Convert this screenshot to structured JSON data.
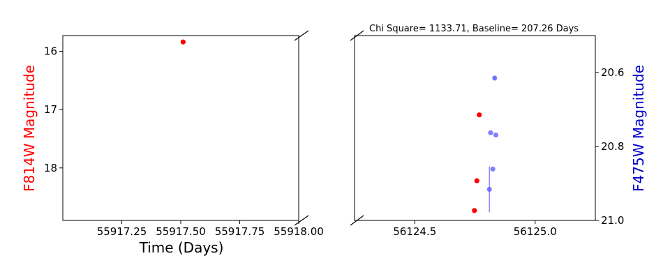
{
  "chart_data": {
    "type": "scatter",
    "title": "Chi Square= 1133.71, Baseline= 207.26 Days",
    "xlabel": "Time (Days)",
    "ylabel_left": "F814W Magnitude",
    "ylabel_right": "F475W Magnitude",
    "broken_x_axis": true,
    "left_panel": {
      "xlim": [
        55917.0,
        55918.0
      ],
      "ylim": [
        18.9,
        15.73
      ],
      "xticks": [
        "55917.25",
        "55917.50",
        "55917.75",
        "55918.00"
      ],
      "yticks": [
        "16",
        "17",
        "18"
      ],
      "series": [
        {
          "band": "F814W",
          "color": "#ff0000",
          "axis": "left",
          "points": [
            {
              "x": 55917.51,
              "y": 15.84
            }
          ]
        }
      ]
    },
    "right_panel": {
      "xlim": [
        56124.25,
        56125.25
      ],
      "ylim_left": [
        18.9,
        15.73
      ],
      "ylim_right": [
        21.0,
        20.5
      ],
      "xticks": [
        "56124.5",
        "56125.0"
      ],
      "yticks_right": [
        "20.6",
        "20.8",
        "21.0"
      ],
      "series": [
        {
          "band": "F814W",
          "color": "#ff0000",
          "axis": "left",
          "points": [
            {
              "x": 56124.768,
              "y": 17.09
            },
            {
              "x": 56124.758,
              "y": 18.22
            },
            {
              "x": 56124.748,
              "y": 18.73
            }
          ]
        },
        {
          "band": "F475W",
          "color": "#5555ff",
          "axis": "right",
          "points": [
            {
              "x": 56124.832,
              "y": 20.615,
              "err": 0.006
            },
            {
              "x": 56124.815,
              "y": 20.763,
              "err": 0.0
            },
            {
              "x": 56124.837,
              "y": 20.769,
              "err": 0.0
            },
            {
              "x": 56124.824,
              "y": 20.861,
              "err": 0.0
            },
            {
              "x": 56124.81,
              "y": 20.916,
              "err": 0.062
            }
          ]
        }
      ]
    }
  }
}
